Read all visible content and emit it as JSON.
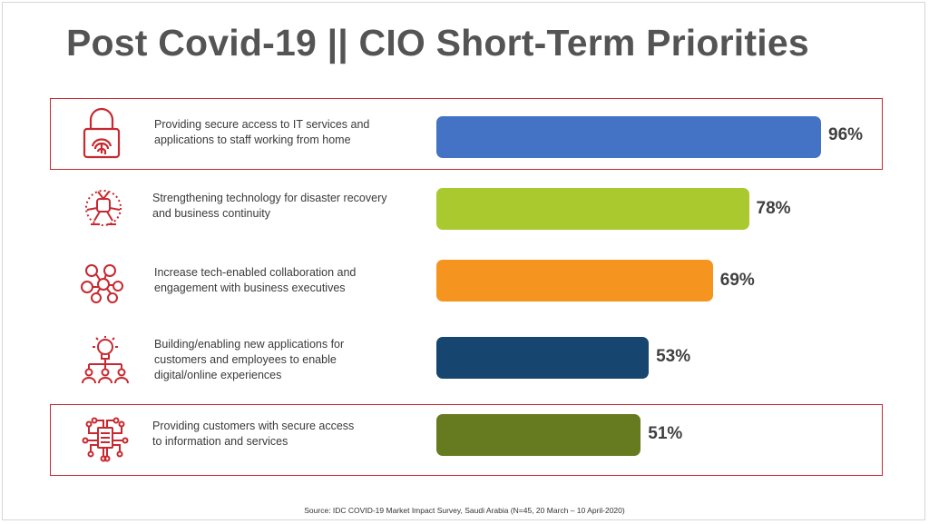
{
  "title": "Post Covid-19 || CIO Short-Term Priorities",
  "source": "Source: IDC COVID-19 Market Impact Survey, Saudi Arabia (N=45, 20 March – 10 April-2020)",
  "accent_color": "#c8282f",
  "chart_data": {
    "type": "bar",
    "orientation": "horizontal",
    "value_unit": "%",
    "categories": [
      "Providing secure access to IT services and applications to staff working from home",
      "Strengthening technology for disaster recovery and business continuity",
      "Increase tech-enabled collaboration and engagement with business executives",
      "Building/enabling new applications for customers and employees to enable digital/online experiences",
      "Providing customers with secure access to information and services"
    ],
    "values": [
      96,
      78,
      69,
      53,
      51
    ],
    "value_labels": [
      "96%",
      "78%",
      "69%",
      "53%",
      "51%"
    ],
    "bar_colors": [
      "#4472c4",
      "#a9c92f",
      "#f5951f",
      "#164670",
      "#667a1f"
    ],
    "icons": [
      "fingerprint-lock-icon",
      "hands-together-icon",
      "collaboration-network-icon",
      "lightbulb-people-icon",
      "circuit-document-icon"
    ],
    "highlighted": [
      true,
      false,
      false,
      false,
      true
    ],
    "grid": false,
    "legend": "none"
  }
}
